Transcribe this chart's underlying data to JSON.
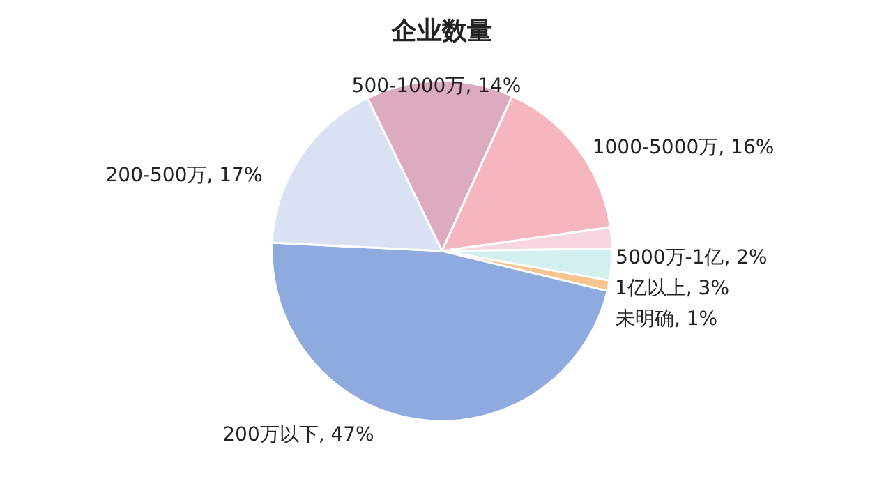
{
  "chart_data": {
    "type": "pie",
    "title": "企业数量",
    "categories": [
      "500-1000万",
      "1000-5000万",
      "5000万-1亿",
      "1亿以上",
      "未明确",
      "200万以下",
      "200-500万"
    ],
    "values": [
      14,
      16,
      2,
      3,
      1,
      47,
      17
    ],
    "value_labels": [
      "14%",
      "16%",
      "2%",
      "3%",
      "1%",
      "47%",
      "17%"
    ],
    "colors": [
      "#ddabbf",
      "#f5b6c0",
      "#f8d6de",
      "#d3f0f0",
      "#f5c48f",
      "#8eaadf",
      "#d9e1f2"
    ],
    "legend": false
  }
}
